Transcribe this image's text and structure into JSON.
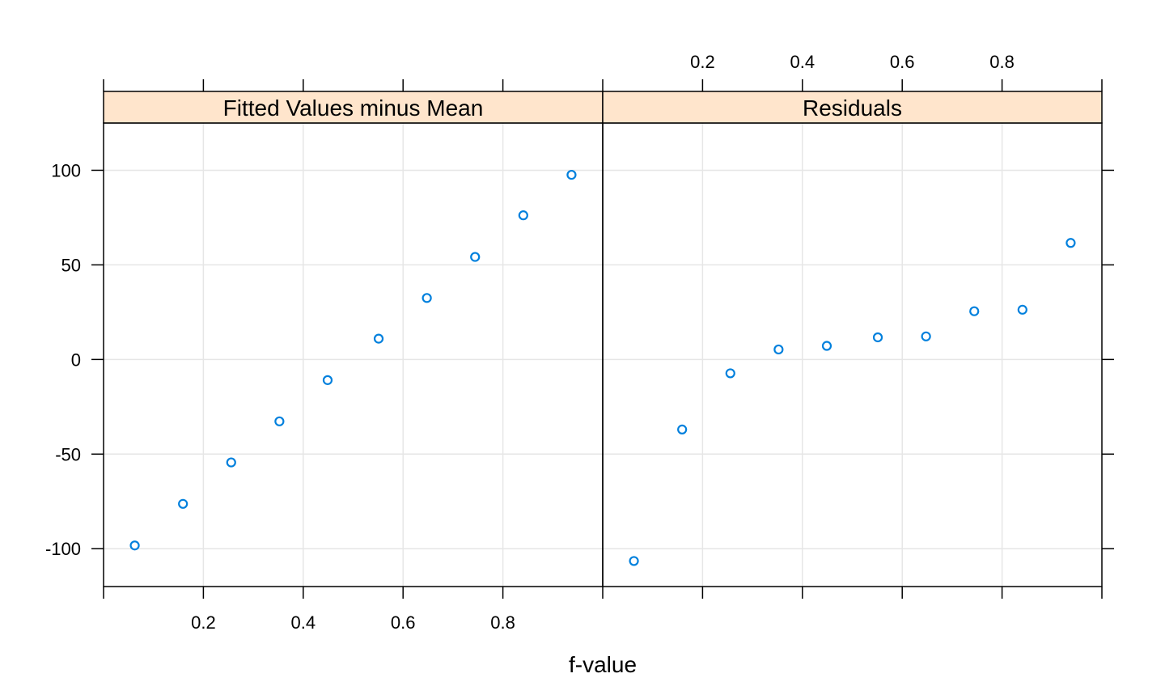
{
  "chart_data": {
    "type": "scatter",
    "xlabel": "f-value",
    "xlim": [
      0,
      1
    ],
    "ylim": [
      -120,
      125
    ],
    "x_ticks": [
      0.2,
      0.4,
      0.6,
      0.8
    ],
    "y_ticks": [
      -100,
      -50,
      0,
      50,
      100
    ],
    "grid": true,
    "colors": {
      "points": "#0080dd",
      "strip": "#ffe5cc",
      "grid": "#e6e6e6",
      "frame": "#000000"
    },
    "panels": [
      {
        "name": "Fitted Values minus Mean",
        "x": [
          0.0625,
          0.1591,
          0.2557,
          0.3523,
          0.4489,
          0.5511,
          0.6477,
          0.7443,
          0.8409,
          0.9375
        ],
        "y": [
          -98.3,
          -76.3,
          -54.4,
          -32.7,
          -10.9,
          11.0,
          32.5,
          54.2,
          76.2,
          97.6
        ]
      },
      {
        "name": "Residuals",
        "x": [
          0.0625,
          0.1591,
          0.2557,
          0.3523,
          0.4489,
          0.5511,
          0.6477,
          0.7443,
          0.8409,
          0.9375
        ],
        "y": [
          -106.5,
          -37.0,
          -7.3,
          5.3,
          7.2,
          11.7,
          12.2,
          25.5,
          26.3,
          61.6
        ]
      }
    ]
  }
}
